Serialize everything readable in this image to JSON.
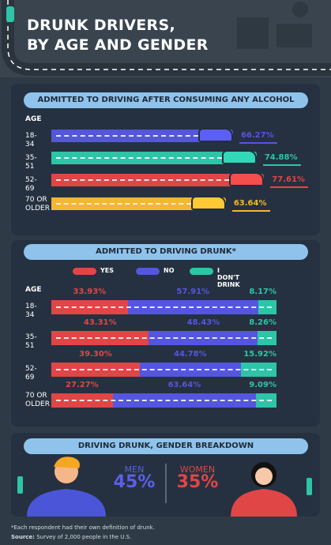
{
  "title": "DRUNK DRIVERS,\nBY AGE AND GENDER",
  "chart_data": [
    {
      "type": "bar",
      "title": "ADMITTED TO DRIVING AFTER CONSUMING ANY ALCOHOL",
      "axis_label": "AGE",
      "categories": [
        "18-34",
        "35-51",
        "52-69",
        "70 OR\nOLDER"
      ],
      "values": [
        66.27,
        74.88,
        77.61,
        63.64
      ],
      "value_labels": [
        "66.27%",
        "74.88%",
        "77.61%",
        "63.64%"
      ],
      "colors": [
        "#5456e0",
        "#2ec4a8",
        "#e04646",
        "#f5b731"
      ]
    },
    {
      "type": "stacked_bar",
      "title": "ADMITTED TO DRIVING DRUNK*",
      "axis_label": "AGE",
      "categories": [
        "18-34",
        "35-51",
        "52-69",
        "70 OR\nOLDER"
      ],
      "series": [
        {
          "name": "YES",
          "color": "#e04646",
          "values": [
            33.93,
            43.31,
            39.3,
            27.27
          ],
          "value_labels": [
            "33.93%",
            "43.31%",
            "39.30%",
            "27.27%"
          ]
        },
        {
          "name": "NO",
          "color": "#5456e0",
          "values": [
            57.91,
            48.43,
            44.78,
            63.64
          ],
          "value_labels": [
            "57.91%",
            "48.43%",
            "44.78%",
            "63.64%"
          ]
        },
        {
          "name": "I DON'T DRINK",
          "color": "#2ec4a8",
          "values": [
            8.17,
            8.26,
            15.92,
            9.09
          ],
          "value_labels": [
            "8.17%",
            "8.26%",
            "15.92%",
            "9.09%"
          ]
        }
      ]
    },
    {
      "type": "comparison",
      "title": "DRIVING DRUNK, GENDER BREAKDOWN",
      "categories": [
        "MEN",
        "WOMEN"
      ],
      "values": [
        45,
        35
      ],
      "value_labels": [
        "45%",
        "35%"
      ],
      "colors": [
        "#5b5fe8",
        "#e04646"
      ]
    }
  ],
  "footnote": "*Each respondent had their own definition of drunk.",
  "source_label": "Source:",
  "source_text": "Survey of 2,000 people in the U.S."
}
